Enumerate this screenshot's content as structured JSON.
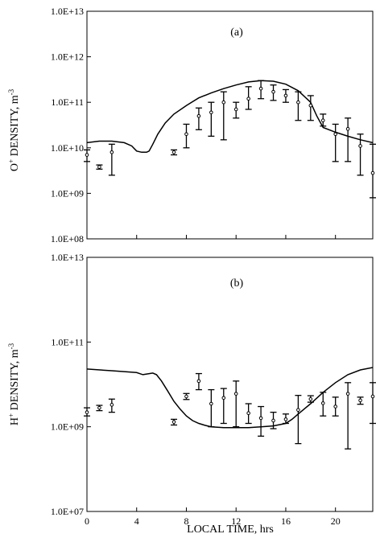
{
  "chart_data": [
    {
      "type": "scatter",
      "panel_label": "(a)",
      "ylabel_parts": [
        "O",
        "+",
        " DENSITY, m",
        "-3"
      ],
      "ylim": [
        100000000.0,
        10000000000000.0
      ],
      "y_scale": "log",
      "y_ticks": [
        "1.0E+08",
        "1.0E+09",
        "1.0E+10",
        "1.0E+11",
        "1.0E+12",
        "1.0E+13"
      ],
      "xlim": [
        0,
        23
      ],
      "model": {
        "x": [
          0,
          1,
          2,
          3,
          3.6,
          4,
          4.4,
          4.8,
          5.0,
          5.3,
          5.7,
          6.3,
          7,
          8,
          9,
          10,
          11,
          12,
          13,
          14,
          15,
          16,
          17,
          18,
          18.5,
          19,
          20,
          21,
          22,
          23
        ],
        "y": [
          13000000000.0,
          14000000000.0,
          14000000000.0,
          13000000000.0,
          11000000000.0,
          8500000000.0,
          8000000000.0,
          8000000000.0,
          8500000000.0,
          12000000000.0,
          20000000000.0,
          35000000000.0,
          55000000000.0,
          85000000000.0,
          125000000000.0,
          160000000000.0,
          200000000000.0,
          240000000000.0,
          280000000000.0,
          300000000000.0,
          290000000000.0,
          250000000000.0,
          180000000000.0,
          100000000000.0,
          50000000000.0,
          28000000000.0,
          22000000000.0,
          18000000000.0,
          15000000000.0,
          13000000000.0
        ]
      },
      "observations": [
        {
          "x": 0,
          "y": 7000000000.0,
          "lo": 5000000000.0,
          "hi": 9000000000.0
        },
        {
          "x": 1,
          "y": 3800000000.0,
          "lo": 3400000000.0,
          "hi": 4200000000.0
        },
        {
          "x": 2,
          "y": 8000000000.0,
          "lo": 2500000000.0,
          "hi": 12000000000.0
        },
        {
          "x": 7,
          "y": 8000000000.0,
          "lo": 7000000000.0,
          "hi": 9000000000.0
        },
        {
          "x": 8,
          "y": 20000000000.0,
          "lo": 10000000000.0,
          "hi": 33000000000.0
        },
        {
          "x": 9,
          "y": 50000000000.0,
          "lo": 25000000000.0,
          "hi": 75000000000.0
        },
        {
          "x": 10,
          "y": 60000000000.0,
          "lo": 18000000000.0,
          "hi": 100000000000.0
        },
        {
          "x": 11,
          "y": 100000000000.0,
          "lo": 15000000000.0,
          "hi": 170000000000.0
        },
        {
          "x": 12,
          "y": 70000000000.0,
          "lo": 45000000000.0,
          "hi": 100000000000.0
        },
        {
          "x": 13,
          "y": 120000000000.0,
          "lo": 70000000000.0,
          "hi": 220000000000.0
        },
        {
          "x": 14,
          "y": 200000000000.0,
          "lo": 120000000000.0,
          "hi": 300000000000.0
        },
        {
          "x": 15,
          "y": 170000000000.0,
          "lo": 110000000000.0,
          "hi": 240000000000.0
        },
        {
          "x": 16,
          "y": 140000000000.0,
          "lo": 100000000000.0,
          "hi": 190000000000.0
        },
        {
          "x": 17,
          "y": 100000000000.0,
          "lo": 40000000000.0,
          "hi": 170000000000.0
        },
        {
          "x": 18,
          "y": 85000000000.0,
          "lo": 40000000000.0,
          "hi": 140000000000.0
        },
        {
          "x": 19,
          "y": 40000000000.0,
          "lo": 30000000000.0,
          "hi": 55000000000.0
        },
        {
          "x": 20,
          "y": 20000000000.0,
          "lo": 5000000000.0,
          "hi": 33000000000.0
        },
        {
          "x": 21,
          "y": 26000000000.0,
          "lo": 5000000000.0,
          "hi": 45000000000.0
        },
        {
          "x": 22,
          "y": 11000000000.0,
          "lo": 2500000000.0,
          "hi": 20000000000.0
        },
        {
          "x": 23,
          "y": 2800000000.0,
          "lo": 800000000.0,
          "hi": 12000000000.0
        }
      ]
    },
    {
      "type": "scatter",
      "panel_label": "(b)",
      "ylabel_parts": [
        "H",
        "+",
        " DENSITY, m",
        "-3"
      ],
      "ylim": [
        10000000.0,
        10000000000000.0
      ],
      "y_scale": "log",
      "y_ticks": [
        "1.0E+07",
        "1.0E+09",
        "1.0E+11",
        "1.0E+13"
      ],
      "xlim": [
        0,
        23
      ],
      "x_ticks": [
        "0",
        "4",
        "8",
        "12",
        "16",
        "20"
      ],
      "xlabel": "LOCAL TIME, hrs",
      "model": {
        "x": [
          0,
          2,
          4,
          4.5,
          5,
          5.3,
          5.6,
          6,
          6.5,
          7,
          7.5,
          8,
          8.5,
          9,
          9.5,
          10,
          11,
          12,
          13,
          14,
          15,
          16,
          16.5,
          17,
          18,
          19,
          20,
          21,
          22,
          23
        ],
        "y": [
          23000000000.0,
          21000000000.0,
          19000000000.0,
          17000000000.0,
          18000000000.0,
          18500000000.0,
          17000000000.0,
          12000000000.0,
          7000000000.0,
          4000000000.0,
          2600000000.0,
          1800000000.0,
          1400000000.0,
          1200000000.0,
          1080000000.0,
          1000000000.0,
          950000000.0,
          950000000.0,
          950000000.0,
          1000000000.0,
          1050000000.0,
          1200000000.0,
          1500000000.0,
          2000000000.0,
          3500000000.0,
          6500000000.0,
          11000000000.0,
          17000000000.0,
          22000000000.0,
          25000000000.0
        ]
      },
      "observations": [
        {
          "x": 0,
          "y": 2200000000.0,
          "lo": 1800000000.0,
          "hi": 2800000000.0
        },
        {
          "x": 1,
          "y": 2800000000.0,
          "lo": 2400000000.0,
          "hi": 3200000000.0
        },
        {
          "x": 2,
          "y": 3300000000.0,
          "lo": 2200000000.0,
          "hi": 4500000000.0
        },
        {
          "x": 7,
          "y": 1300000000.0,
          "lo": 1100000000.0,
          "hi": 1500000000.0
        },
        {
          "x": 8,
          "y": 5200000000.0,
          "lo": 4400000000.0,
          "hi": 6100000000.0
        },
        {
          "x": 9,
          "y": 12000000000.0,
          "lo": 7500000000.0,
          "hi": 18000000000.0
        },
        {
          "x": 10,
          "y": 3500000000.0,
          "lo": 1000000000.0,
          "hi": 7500000000.0
        },
        {
          "x": 11,
          "y": 4800000000.0,
          "lo": 1200000000.0,
          "hi": 8000000000.0
        },
        {
          "x": 12,
          "y": 6000000000.0,
          "lo": 1000000000.0,
          "hi": 12000000000.0
        },
        {
          "x": 13,
          "y": 2100000000.0,
          "lo": 1200000000.0,
          "hi": 3500000000.0
        },
        {
          "x": 14,
          "y": 1600000000.0,
          "lo": 600000000.0,
          "hi": 3000000000.0
        },
        {
          "x": 15,
          "y": 1400000000.0,
          "lo": 900000000.0,
          "hi": 2200000000.0
        },
        {
          "x": 16,
          "y": 1500000000.0,
          "lo": 1200000000.0,
          "hi": 2000000000.0
        },
        {
          "x": 17,
          "y": 2500000000.0,
          "lo": 400000000.0,
          "hi": 5500000000.0
        },
        {
          "x": 18,
          "y": 4500000000.0,
          "lo": 3800000000.0,
          "hi": 5400000000.0
        },
        {
          "x": 19,
          "y": 3600000000.0,
          "lo": 1800000000.0,
          "hi": 6500000000.0
        },
        {
          "x": 20,
          "y": 3000000000.0,
          "lo": 1800000000.0,
          "hi": 5000000000.0
        },
        {
          "x": 21,
          "y": 6000000000.0,
          "lo": 300000000.0,
          "hi": 11000000000.0
        },
        {
          "x": 22,
          "y": 4200000000.0,
          "lo": 3400000000.0,
          "hi": 5000000000.0
        },
        {
          "x": 23,
          "y": 5200000000.0,
          "lo": 1200000000.0,
          "hi": 11000000000.0
        }
      ]
    }
  ]
}
